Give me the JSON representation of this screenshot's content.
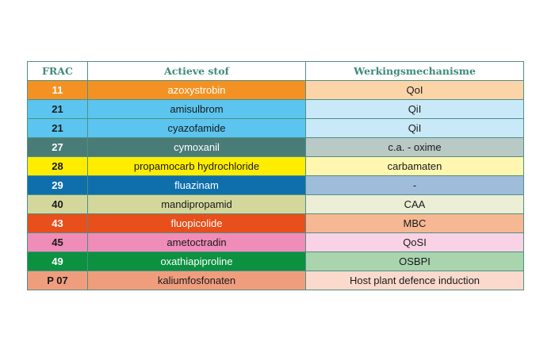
{
  "table": {
    "headers": {
      "frac": "FRAC",
      "actieve_stof": "Actieve stof",
      "werkingsmechanisme": "Werkingsmechanisme"
    },
    "rows": [
      {
        "frac": "11",
        "actieve_stof": "azoxystrobin",
        "werkingsmechanisme": "QoI",
        "color": "#f39223",
        "text_color": "#ffffff",
        "mech_color": "#fbd5a8",
        "mech_text_color": "#1a1a1a"
      },
      {
        "frac": "21",
        "actieve_stof": "amisulbrom",
        "werkingsmechanisme": "QiI",
        "color": "#5bc5ef",
        "text_color": "#1a1a1a",
        "mech_color": "#c9e9f8",
        "mech_text_color": "#1a1a1a"
      },
      {
        "frac": "21",
        "actieve_stof": "cyazofamide",
        "werkingsmechanisme": "QiI",
        "color": "#5bc5ef",
        "text_color": "#1a1a1a",
        "mech_color": "#c9e9f8",
        "mech_text_color": "#1a1a1a"
      },
      {
        "frac": "27",
        "actieve_stof": "cymoxanil",
        "werkingsmechanisme": "c.a. - oxime",
        "color": "#4a7c77",
        "text_color": "#ffffff",
        "mech_color": "#b9c9c6",
        "mech_text_color": "#1a1a1a"
      },
      {
        "frac": "28",
        "actieve_stof": "propamocarb hydrochloride",
        "werkingsmechanisme": "carbamaten",
        "color": "#ffed00",
        "text_color": "#1a1a1a",
        "mech_color": "#fff7b0",
        "mech_text_color": "#1a1a1a"
      },
      {
        "frac": "29",
        "actieve_stof": "fluazinam",
        "werkingsmechanisme": "-",
        "color": "#0e6fab",
        "text_color": "#ffffff",
        "mech_color": "#9fbddb",
        "mech_text_color": "#1a1a1a"
      },
      {
        "frac": "40",
        "actieve_stof": "mandipropamid",
        "werkingsmechanisme": "CAA",
        "color": "#d3d79c",
        "text_color": "#1a1a1a",
        "mech_color": "#eceed6",
        "mech_text_color": "#1a1a1a"
      },
      {
        "frac": "43",
        "actieve_stof": "fluopicolide",
        "werkingsmechanisme": "MBC",
        "color": "#e84f1b",
        "text_color": "#ffffff",
        "mech_color": "#f6b892",
        "mech_text_color": "#1a1a1a"
      },
      {
        "frac": "45",
        "actieve_stof": "ametoctradin",
        "werkingsmechanisme": "QoSI",
        "color": "#f08cb8",
        "text_color": "#1a1a1a",
        "mech_color": "#f9d3e5",
        "mech_text_color": "#1a1a1a"
      },
      {
        "frac": "49",
        "actieve_stof": "oxathiapiproline",
        "werkingsmechanisme": "OSBPI",
        "color": "#0b9140",
        "text_color": "#ffffff",
        "mech_color": "#a9d4ae",
        "mech_text_color": "#1a1a1a"
      },
      {
        "frac": "P 07",
        "actieve_stof": "kaliumfosfonaten",
        "werkingsmechanisme": "Host plant defence induction",
        "color": "#f09d7e",
        "text_color": "#1a1a1a",
        "mech_color": "#fbdacd",
        "mech_text_color": "#1a1a1a"
      }
    ]
  }
}
